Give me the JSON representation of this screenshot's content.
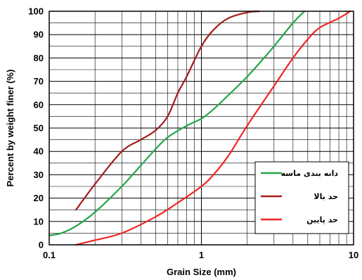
{
  "chart_data": {
    "type": "line",
    "xlabel": "Grain Size  (mm)",
    "ylabel": "Percent by weight finer (%)",
    "x_scale": "log",
    "xlim": [
      0.1,
      10
    ],
    "ylim": [
      0,
      100
    ],
    "x_tick_labels": [
      "0.1",
      "1",
      "10"
    ],
    "y_tick_labels": [
      "0",
      "10",
      "20",
      "30",
      "40",
      "50",
      "60",
      "70",
      "80",
      "90",
      "100"
    ],
    "grid": true,
    "legend_position": "bottom-right",
    "series": [
      {
        "name": "دانه بندی ماسه",
        "color": "#22a64b",
        "x": [
          0.1,
          0.12,
          0.15,
          0.2,
          0.3,
          0.4,
          0.5,
          0.6,
          0.8,
          1.0,
          1.2,
          1.5,
          2.0,
          2.5,
          3.0,
          4.0,
          4.75
        ],
        "y": [
          4,
          5,
          8,
          14,
          25,
          34,
          41,
          46,
          51,
          54,
          58,
          64,
          72,
          79,
          85,
          95,
          100
        ]
      },
      {
        "name": "حد بالا",
        "color": "#a31c1c",
        "x": [
          0.15,
          0.2,
          0.3,
          0.4,
          0.5,
          0.6,
          0.7,
          0.8,
          1.0,
          1.2,
          1.5,
          2.0,
          2.4
        ],
        "y": [
          15,
          26,
          40,
          45,
          49,
          55,
          65,
          72,
          85,
          92,
          97,
          99.5,
          100
        ]
      },
      {
        "name": "حد پایین",
        "color": "#f02424",
        "x": [
          0.15,
          0.2,
          0.3,
          0.5,
          0.7,
          1.0,
          1.2,
          1.5,
          2.0,
          3.0,
          4.0,
          5.0,
          6.0,
          8.0,
          9.5
        ],
        "y": [
          0,
          2,
          5,
          12,
          18,
          25,
          30,
          38,
          51,
          68,
          80,
          88,
          93,
          97,
          100
        ]
      }
    ]
  }
}
